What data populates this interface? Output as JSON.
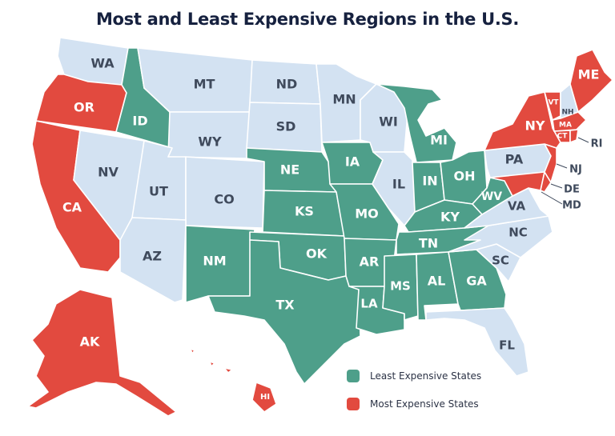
{
  "title": "Most and Least Expensive Regions in the U.S.",
  "colors": {
    "least": "#4e9f8a",
    "most": "#e24a3f",
    "neutral": "#d3e2f2",
    "title": "#16213f"
  },
  "legend": {
    "least_label": "Least Expensive States",
    "most_label": "Most Expensive States"
  },
  "states": {
    "WA": {
      "label": "WA",
      "category": "neutral"
    },
    "OR": {
      "label": "OR",
      "category": "most"
    },
    "CA": {
      "label": "CA",
      "category": "most"
    },
    "NV": {
      "label": "NV",
      "category": "neutral"
    },
    "ID": {
      "label": "ID",
      "category": "least"
    },
    "MT": {
      "label": "MT",
      "category": "neutral"
    },
    "WY": {
      "label": "WY",
      "category": "neutral"
    },
    "UT": {
      "label": "UT",
      "category": "neutral"
    },
    "CO": {
      "label": "CO",
      "category": "neutral"
    },
    "AZ": {
      "label": "AZ",
      "category": "neutral"
    },
    "NM": {
      "label": "NM",
      "category": "least"
    },
    "ND": {
      "label": "ND",
      "category": "neutral"
    },
    "SD": {
      "label": "SD",
      "category": "neutral"
    },
    "NE": {
      "label": "NE",
      "category": "least"
    },
    "KS": {
      "label": "KS",
      "category": "least"
    },
    "OK": {
      "label": "OK",
      "category": "least"
    },
    "TX": {
      "label": "TX",
      "category": "least"
    },
    "MN": {
      "label": "MN",
      "category": "neutral"
    },
    "IA": {
      "label": "IA",
      "category": "least"
    },
    "MO": {
      "label": "MO",
      "category": "least"
    },
    "AR": {
      "label": "AR",
      "category": "least"
    },
    "LA": {
      "label": "LA",
      "category": "least"
    },
    "WI": {
      "label": "WI",
      "category": "neutral"
    },
    "IL": {
      "label": "IL",
      "category": "neutral"
    },
    "MI": {
      "label": "MI",
      "category": "least"
    },
    "IN": {
      "label": "IN",
      "category": "least"
    },
    "OH": {
      "label": "OH",
      "category": "least"
    },
    "KY": {
      "label": "KY",
      "category": "least"
    },
    "TN": {
      "label": "TN",
      "category": "least"
    },
    "MS": {
      "label": "MS",
      "category": "least"
    },
    "AL": {
      "label": "AL",
      "category": "least"
    },
    "GA": {
      "label": "GA",
      "category": "least"
    },
    "FL": {
      "label": "FL",
      "category": "neutral"
    },
    "SC": {
      "label": "SC",
      "category": "neutral"
    },
    "NC": {
      "label": "NC",
      "category": "neutral"
    },
    "VA": {
      "label": "VA",
      "category": "neutral"
    },
    "WV": {
      "label": "WV",
      "category": "least"
    },
    "PA": {
      "label": "PA",
      "category": "neutral"
    },
    "NY": {
      "label": "NY",
      "category": "most"
    },
    "VT": {
      "label": "VT",
      "category": "most"
    },
    "NH": {
      "label": "NH",
      "category": "neutral"
    },
    "ME": {
      "label": "ME",
      "category": "most"
    },
    "MA": {
      "label": "MA",
      "category": "most"
    },
    "CT": {
      "label": "CT",
      "category": "most"
    },
    "RI": {
      "label": "RI",
      "category": "most"
    },
    "NJ": {
      "label": "NJ",
      "category": "most"
    },
    "DE": {
      "label": "DE",
      "category": "most"
    },
    "MD": {
      "label": "MD",
      "category": "most"
    },
    "AK": {
      "label": "AK",
      "category": "most"
    },
    "HI": {
      "label": "HI",
      "category": "most"
    }
  }
}
